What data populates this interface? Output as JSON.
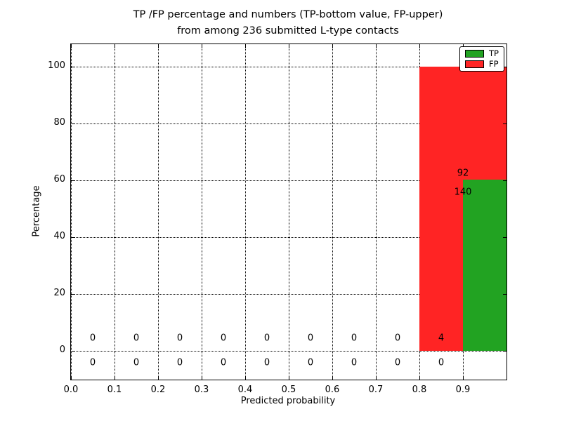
{
  "chart_data": {
    "type": "bar",
    "stacked": true,
    "title_line1": "TP /FP percentage and numbers (TP-bottom value, FP-upper)",
    "title_line2": "from among 236 submitted L-type contacts",
    "xlabel": "Predicted probability",
    "ylabel": "Percentage",
    "total_contacts": 236,
    "xlim": [
      0.0,
      1.0
    ],
    "ylim": [
      -10,
      108
    ],
    "xticks": [
      "0.0",
      "0.1",
      "0.2",
      "0.3",
      "0.4",
      "0.5",
      "0.6",
      "0.7",
      "0.8",
      "0.9"
    ],
    "yticks": [
      0,
      20,
      40,
      60,
      80,
      100
    ],
    "grid": "dotted",
    "bins": {
      "start": 0.0,
      "width": 0.1,
      "count": 10
    },
    "series": [
      {
        "name": "TP",
        "color": "#22a322",
        "percent": [
          0,
          0,
          0,
          0,
          0,
          0,
          0,
          0,
          0,
          60.3
        ],
        "counts": [
          0,
          0,
          0,
          0,
          0,
          0,
          0,
          0,
          0,
          140
        ]
      },
      {
        "name": "FP",
        "color": "#ff2424",
        "percent": [
          0,
          0,
          0,
          0,
          0,
          0,
          0,
          0,
          100,
          39.7
        ],
        "counts": [
          0,
          0,
          0,
          0,
          0,
          0,
          0,
          0,
          4,
          92
        ]
      }
    ],
    "legend": {
      "location": "upper right",
      "items": [
        {
          "label": "TP"
        },
        {
          "label": "FP"
        }
      ]
    },
    "annotations": {
      "fp": [
        {
          "x": 0.05,
          "y": 4.5,
          "text": "0"
        },
        {
          "x": 0.15,
          "y": 4.5,
          "text": "0"
        },
        {
          "x": 0.25,
          "y": 4.5,
          "text": "0"
        },
        {
          "x": 0.35,
          "y": 4.5,
          "text": "0"
        },
        {
          "x": 0.45,
          "y": 4.5,
          "text": "0"
        },
        {
          "x": 0.55,
          "y": 4.5,
          "text": "0"
        },
        {
          "x": 0.65,
          "y": 4.5,
          "text": "0"
        },
        {
          "x": 0.75,
          "y": 4.5,
          "text": "0"
        },
        {
          "x": 0.85,
          "y": 4.5,
          "text": "4"
        },
        {
          "x": 0.9,
          "y": 62.5,
          "text": "92"
        }
      ],
      "tp": [
        {
          "x": 0.05,
          "y": -4,
          "text": "0"
        },
        {
          "x": 0.15,
          "y": -4,
          "text": "0"
        },
        {
          "x": 0.25,
          "y": -4,
          "text": "0"
        },
        {
          "x": 0.35,
          "y": -4,
          "text": "0"
        },
        {
          "x": 0.45,
          "y": -4,
          "text": "0"
        },
        {
          "x": 0.55,
          "y": -4,
          "text": "0"
        },
        {
          "x": 0.65,
          "y": -4,
          "text": "0"
        },
        {
          "x": 0.75,
          "y": -4,
          "text": "0"
        },
        {
          "x": 0.85,
          "y": -4,
          "text": "0"
        },
        {
          "x": 0.9,
          "y": 56,
          "text": "140"
        }
      ]
    }
  }
}
